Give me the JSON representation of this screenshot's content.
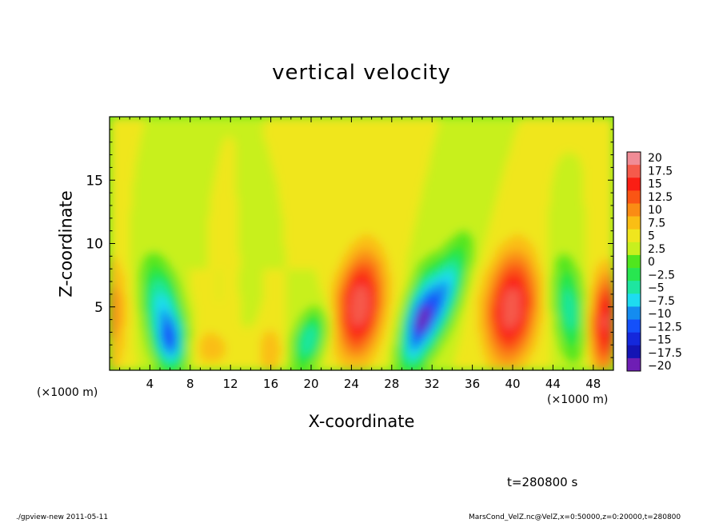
{
  "chart_data": {
    "type": "heatmap",
    "title": "vertical velocity",
    "xlabel": "X-coordinate",
    "ylabel": "Z-coordinate",
    "x_unit_left": "(×1000 m)",
    "x_unit_right": "(×1000 m)",
    "xlim": [
      0,
      50
    ],
    "ylim": [
      0,
      20
    ],
    "x_ticks": [
      4,
      8,
      12,
      16,
      20,
      24,
      28,
      32,
      36,
      40,
      44,
      48
    ],
    "y_ticks": [
      5,
      10,
      15
    ],
    "x_tick_labels": [
      "4",
      "8",
      "12",
      "16",
      "20",
      "24",
      "28",
      "32",
      "36",
      "40",
      "44",
      "48"
    ],
    "y_tick_labels": [
      "5",
      "10",
      "15"
    ],
    "colorbar": {
      "levels": [
        20,
        17.5,
        15,
        12.5,
        10,
        7.5,
        5,
        2.5,
        0,
        -2.5,
        -5,
        -7.5,
        -10,
        -12.5,
        -15,
        -17.5,
        -20
      ],
      "labels": [
        "20",
        "17.5",
        "15",
        "12.5",
        "10",
        "7.5",
        "5",
        "2.5",
        "0",
        "−2.5",
        "−5",
        "−7.5",
        "−10",
        "−12.5",
        "−15",
        "−17.5",
        "−20"
      ],
      "colors": [
        "#f08c96",
        "#f55a4b",
        "#fa1e14",
        "#fa5514",
        "#fa8c14",
        "#fabe14",
        "#f0e61e",
        "#c8f01e",
        "#50e61e",
        "#28e650",
        "#1ee6a0",
        "#1edcf0",
        "#148cf0",
        "#1450fa",
        "#1428dc",
        "#1414b4",
        "#6e1eb4"
      ]
    },
    "features": [
      {
        "x": 0.3,
        "z": 4.5,
        "value": 6
      },
      {
        "x": 5.3,
        "z": 4.5,
        "value": -11
      },
      {
        "x": 6.1,
        "z": 2.2,
        "value": -9
      },
      {
        "x": 10.0,
        "z": 1.8,
        "value": 4
      },
      {
        "x": 16.0,
        "z": 1.5,
        "value": 5
      },
      {
        "x": 12.8,
        "z": 6.3,
        "value": 2
      },
      {
        "x": 13.8,
        "z": 6.5,
        "value": -3
      },
      {
        "x": 19.8,
        "z": 2.4,
        "value": -10
      },
      {
        "x": 24.9,
        "z": 5.2,
        "value": 15
      },
      {
        "x": 30.5,
        "z": 4.0,
        "value": -13
      },
      {
        "x": 32.8,
        "z": 5.5,
        "value": -13
      },
      {
        "x": 39.9,
        "z": 5.0,
        "value": 15
      },
      {
        "x": 45.6,
        "z": 4.8,
        "value": -9
      },
      {
        "x": 49.1,
        "z": 3.8,
        "value": 13
      }
    ]
  },
  "footer": {
    "time": "t=280800 s",
    "left": "./gpview-new  2011-05-11",
    "right": "MarsCond_VelZ.nc@VelZ,x=0:50000,z=0:20000,t=280800"
  }
}
